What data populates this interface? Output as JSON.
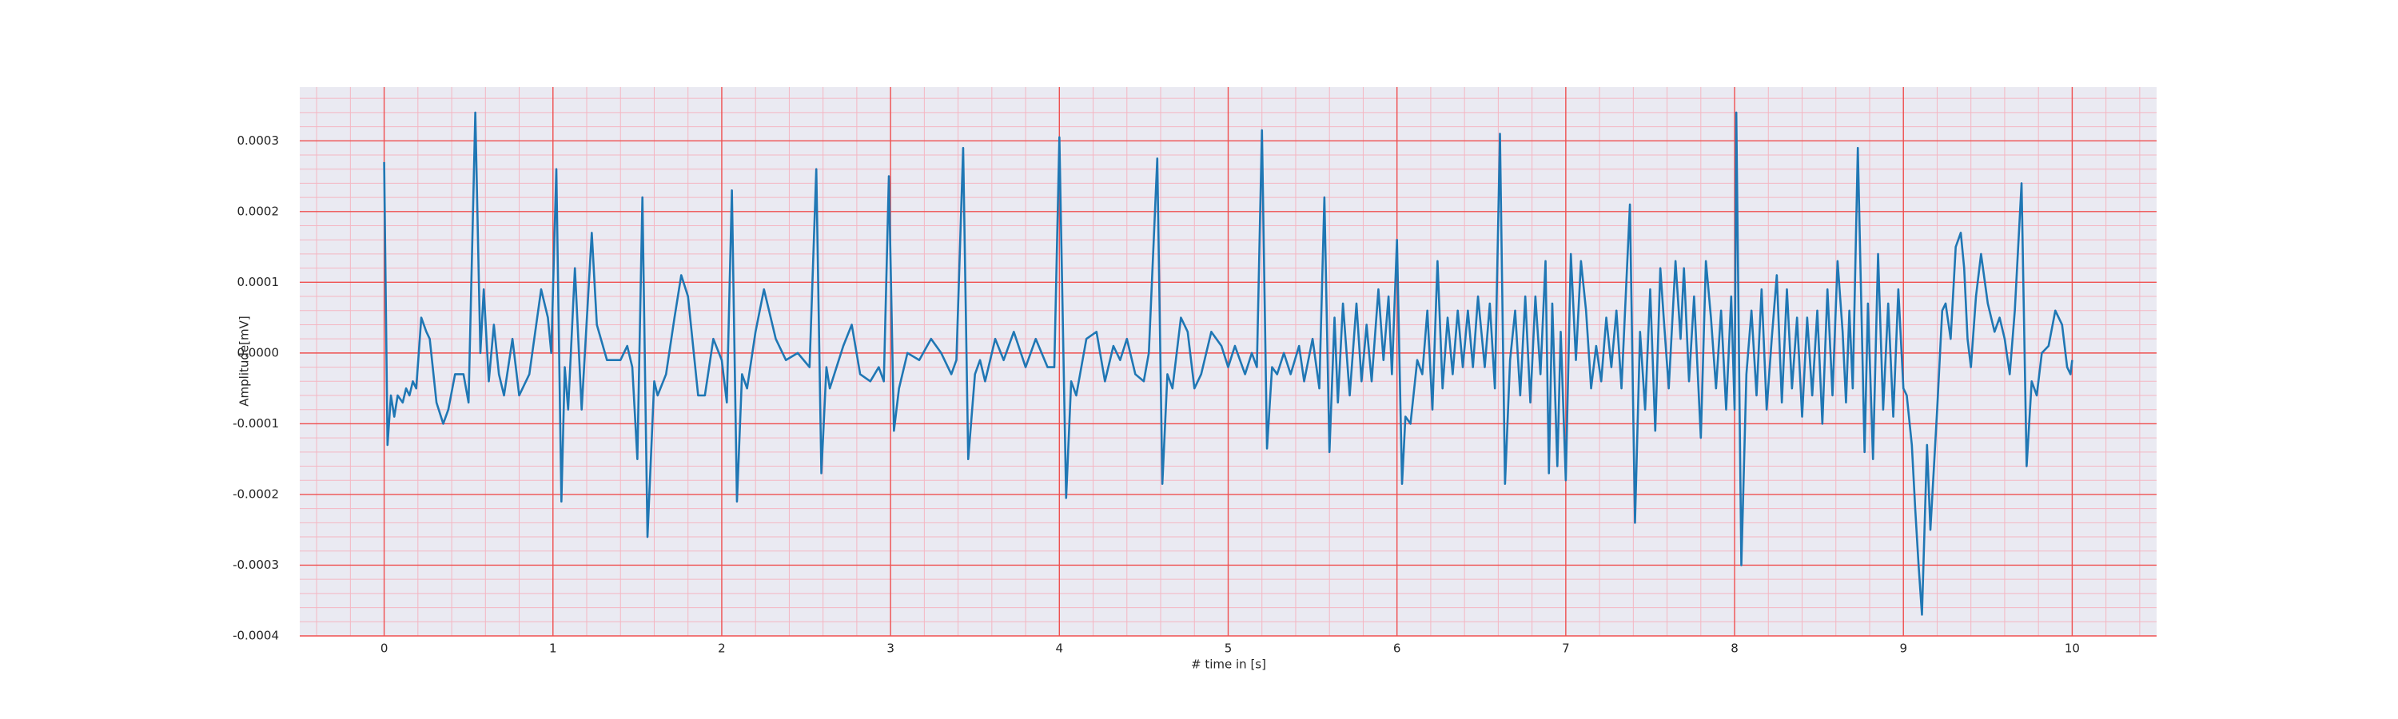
{
  "chart_data": {
    "type": "line",
    "x_label": "# time in [s]",
    "y_label": "Amplitude[mV]",
    "color": "#1f77b4",
    "grid": true,
    "minor_grid": true,
    "xlim": [
      -0.5,
      10.5
    ],
    "ylim": [
      -0.0004,
      0.000376
    ],
    "xticks": [
      0,
      1,
      2,
      3,
      4,
      5,
      6,
      7,
      8,
      9,
      10
    ],
    "yticks": [
      {
        "value": -0.0004,
        "label": "-0.0004"
      },
      {
        "value": -0.0003,
        "label": "-0.0003"
      },
      {
        "value": -0.0002,
        "label": "-0.0002"
      },
      {
        "value": -0.0001,
        "label": "-0.0001"
      },
      {
        "value": 0,
        "label": "0.0000"
      },
      {
        "value": 0.0001,
        "label": "0.0001"
      },
      {
        "value": 0.0002,
        "label": "0.0002"
      },
      {
        "value": 0.0003,
        "label": "0.0003"
      }
    ],
    "x": [
      0,
      0.02,
      0.04,
      0.06,
      0.08,
      0.11,
      0.13,
      0.15,
      0.17,
      0.19,
      0.22,
      0.25,
      0.27,
      0.31,
      0.35,
      0.38,
      0.42,
      0.47,
      0.5,
      0.54,
      0.57,
      0.59,
      0.62,
      0.65,
      0.68,
      0.71,
      0.76,
      0.8,
      0.86,
      0.93,
      0.97,
      0.99,
      1.02,
      1.05,
      1.07,
      1.09,
      1.13,
      1.17,
      1.23,
      1.26,
      1.32,
      1.4,
      1.44,
      1.47,
      1.5,
      1.53,
      1.56,
      1.6,
      1.62,
      1.67,
      1.72,
      1.76,
      1.8,
      1.86,
      1.9,
      1.95,
      2.0,
      2.03,
      2.06,
      2.09,
      2.12,
      2.15,
      2.2,
      2.25,
      2.32,
      2.38,
      2.45,
      2.52,
      2.56,
      2.59,
      2.62,
      2.64,
      2.68,
      2.72,
      2.77,
      2.82,
      2.88,
      2.93,
      2.96,
      2.99,
      3.02,
      3.05,
      3.1,
      3.17,
      3.24,
      3.3,
      3.36,
      3.39,
      3.43,
      3.46,
      3.5,
      3.53,
      3.56,
      3.62,
      3.67,
      3.73,
      3.8,
      3.86,
      3.93,
      3.97,
      4.0,
      4.04,
      4.07,
      4.1,
      4.16,
      4.22,
      4.27,
      4.32,
      4.36,
      4.4,
      4.45,
      4.5,
      4.53,
      4.58,
      4.61,
      4.64,
      4.67,
      4.72,
      4.76,
      4.8,
      4.84,
      4.9,
      4.96,
      5.0,
      5.04,
      5.1,
      5.14,
      5.17,
      5.2,
      5.23,
      5.26,
      5.29,
      5.33,
      5.37,
      5.42,
      5.45,
      5.5,
      5.54,
      5.57,
      5.6,
      5.63,
      5.65,
      5.68,
      5.72,
      5.76,
      5.79,
      5.82,
      5.85,
      5.89,
      5.92,
      5.95,
      5.97,
      6.0,
      6.03,
      6.05,
      6.08,
      6.12,
      6.15,
      6.18,
      6.21,
      6.24,
      6.27,
      6.3,
      6.33,
      6.36,
      6.39,
      6.42,
      6.45,
      6.48,
      6.52,
      6.55,
      6.58,
      6.61,
      6.64,
      6.67,
      6.7,
      6.73,
      6.76,
      6.79,
      6.82,
      6.85,
      6.88,
      6.9,
      6.92,
      6.95,
      6.97,
      7.0,
      7.03,
      7.06,
      7.09,
      7.12,
      7.15,
      7.18,
      7.21,
      7.24,
      7.27,
      7.3,
      7.33,
      7.38,
      7.41,
      7.44,
      7.47,
      7.5,
      7.53,
      7.56,
      7.58,
      7.61,
      7.65,
      7.68,
      7.7,
      7.73,
      7.76,
      7.8,
      7.83,
      7.86,
      7.89,
      7.92,
      7.95,
      7.98,
      8.0,
      8.01,
      8.04,
      8.07,
      8.1,
      8.13,
      8.16,
      8.19,
      8.22,
      8.25,
      8.28,
      8.31,
      8.34,
      8.37,
      8.4,
      8.43,
      8.46,
      8.49,
      8.52,
      8.55,
      8.58,
      8.61,
      8.64,
      8.66,
      8.68,
      8.7,
      8.73,
      8.77,
      8.79,
      8.82,
      8.85,
      8.88,
      8.91,
      8.94,
      8.97,
      9.0,
      9.02,
      9.05,
      9.07,
      9.09,
      9.11,
      9.14,
      9.16,
      9.2,
      9.23,
      9.25,
      9.28,
      9.31,
      9.34,
      9.36,
      9.38,
      9.4,
      9.43,
      9.46,
      9.5,
      9.54,
      9.57,
      9.6,
      9.63,
      9.66,
      9.7,
      9.73,
      9.76,
      9.79,
      9.82,
      9.86,
      9.9,
      9.94,
      9.97,
      9.99,
      10.0
    ],
    "values": [
      0.00027,
      -0.00013,
      -6e-05,
      -9e-05,
      -6e-05,
      -7e-05,
      -5e-05,
      -6e-05,
      -4e-05,
      -5e-05,
      5e-05,
      3e-05,
      2e-05,
      -7e-05,
      -0.0001,
      -8e-05,
      -3e-05,
      -3e-05,
      -7e-05,
      0.00034,
      0,
      9e-05,
      -4e-05,
      4e-05,
      -3e-05,
      -6e-05,
      2e-05,
      -6e-05,
      -3e-05,
      9e-05,
      5e-05,
      0,
      0.00026,
      -0.00021,
      -2e-05,
      -8e-05,
      0.00012,
      -8e-05,
      0.00017,
      4e-05,
      -1e-05,
      -1e-05,
      1e-05,
      -2e-05,
      -0.00015,
      0.00022,
      -0.00026,
      -4e-05,
      -6e-05,
      -3e-05,
      5e-05,
      0.00011,
      8e-05,
      -6e-05,
      -6e-05,
      2e-05,
      -1e-05,
      -7e-05,
      0.00023,
      -0.00021,
      -3e-05,
      -5e-05,
      3e-05,
      9e-05,
      2e-05,
      -1e-05,
      0,
      -2e-05,
      0.00026,
      -0.00017,
      -2e-05,
      -5e-05,
      -2e-05,
      1e-05,
      4e-05,
      -3e-05,
      -4e-05,
      -2e-05,
      -4e-05,
      0.00025,
      -0.00011,
      -5e-05,
      0,
      -1e-05,
      2e-05,
      0,
      -3e-05,
      -1e-05,
      0.00029,
      -0.00015,
      -3e-05,
      -1e-05,
      -4e-05,
      2e-05,
      -1e-05,
      3e-05,
      -2e-05,
      2e-05,
      -2e-05,
      -2e-05,
      0.000305,
      -0.000205,
      -4e-05,
      -6e-05,
      2e-05,
      3e-05,
      -4e-05,
      1e-05,
      -1e-05,
      2e-05,
      -3e-05,
      -4e-05,
      0,
      0.000275,
      -0.000185,
      -3e-05,
      -5e-05,
      5e-05,
      3e-05,
      -5e-05,
      -3e-05,
      3e-05,
      1e-05,
      -2e-05,
      1e-05,
      -3e-05,
      0,
      -2e-05,
      0.000315,
      -0.000135,
      -2e-05,
      -3e-05,
      0,
      -3e-05,
      1e-05,
      -4e-05,
      2e-05,
      -5e-05,
      0.00022,
      -0.00014,
      5e-05,
      -7e-05,
      7e-05,
      -6e-05,
      7e-05,
      -4e-05,
      4e-05,
      -4e-05,
      9e-05,
      -1e-05,
      8e-05,
      -3e-05,
      0.00016,
      -0.000185,
      -9e-05,
      -0.0001,
      -1e-05,
      -3e-05,
      6e-05,
      -8e-05,
      0.00013,
      -5e-05,
      5e-05,
      -3e-05,
      6e-05,
      -2e-05,
      6e-05,
      -2e-05,
      8e-05,
      -2e-05,
      7e-05,
      -5e-05,
      0.00031,
      -0.000185,
      -1e-05,
      6e-05,
      -6e-05,
      8e-05,
      -7e-05,
      8e-05,
      -3e-05,
      0.00013,
      -0.00017,
      7e-05,
      -0.00016,
      3e-05,
      -0.00018,
      0.00014,
      -1e-05,
      0.00013,
      6e-05,
      -5e-05,
      1e-05,
      -4e-05,
      5e-05,
      -2e-05,
      6e-05,
      -5e-05,
      0.00021,
      -0.00024,
      3e-05,
      -8e-05,
      9e-05,
      -0.00011,
      0.00012,
      5e-05,
      -5e-05,
      0.00013,
      2e-05,
      0.00012,
      -4e-05,
      8e-05,
      -0.00012,
      0.00013,
      5e-05,
      -5e-05,
      6e-05,
      -8e-05,
      8e-05,
      -8e-05,
      0.00034,
      -0.0003,
      -3e-05,
      6e-05,
      -6e-05,
      9e-05,
      -8e-05,
      2e-05,
      0.00011,
      -7e-05,
      9e-05,
      -5e-05,
      5e-05,
      -9e-05,
      5e-05,
      -6e-05,
      6e-05,
      -0.0001,
      9e-05,
      -6e-05,
      0.00013,
      3e-05,
      -7e-05,
      6e-05,
      -5e-05,
      0.00029,
      -0.00014,
      7e-05,
      -0.00015,
      0.00014,
      -8e-05,
      7e-05,
      -9e-05,
      9e-05,
      -5e-05,
      -6e-05,
      -0.00013,
      -0.00022,
      -0.0003,
      -0.00037,
      -0.00013,
      -0.00025,
      -8e-05,
      6e-05,
      7e-05,
      2e-05,
      0.00015,
      0.00017,
      0.00012,
      2e-05,
      -2e-05,
      8e-05,
      0.00014,
      7e-05,
      3e-05,
      5e-05,
      2e-05,
      -3e-05,
      6e-05,
      0.00024,
      -0.00016,
      -4e-05,
      -6e-05,
      0,
      1e-05,
      6e-05,
      4e-05,
      -2e-05,
      -3e-05,
      -1e-05
    ]
  }
}
